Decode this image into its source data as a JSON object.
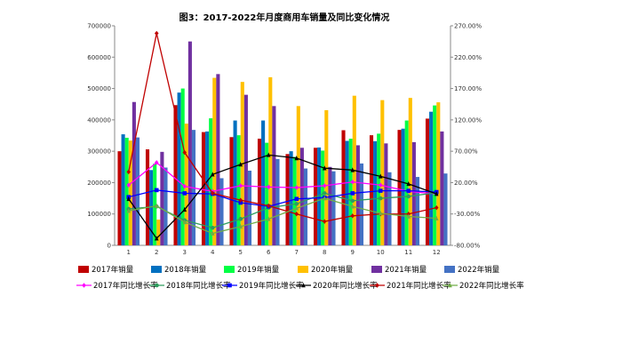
{
  "chart_data": {
    "type": "bar+line",
    "title": "图3：2017-2022年月度商用车销量及同比变化情况",
    "xlabel": "",
    "ylabel": "",
    "categories": [
      "1",
      "2",
      "3",
      "4",
      "5",
      "6",
      "7",
      "8",
      "9",
      "10",
      "11",
      "12"
    ],
    "y_left": {
      "lim": [
        0,
        700000
      ],
      "ticks": [
        "0",
        "100000",
        "200000",
        "300000",
        "400000",
        "500000",
        "600000",
        "700000"
      ]
    },
    "y_right": {
      "lim": [
        -80,
        270
      ],
      "ticks": [
        "-80.00%",
        "-30.00%",
        "20.00%",
        "70.00%",
        "120.00%",
        "170.00%",
        "220.00%",
        "270.00%"
      ]
    },
    "grid": false,
    "legend_position": "bottom",
    "bar_series": [
      {
        "name": "2017年销量",
        "color": "#C00000",
        "values": [
          300000,
          306000,
          447000,
          361000,
          345000,
          340000,
          291000,
          311000,
          367000,
          351000,
          368000,
          404000
        ]
      },
      {
        "name": "2018年销量",
        "color": "#0070C0",
        "values": [
          354000,
          240000,
          487000,
          363000,
          398000,
          398000,
          300000,
          312000,
          333000,
          332000,
          372000,
          426000
        ]
      },
      {
        "name": "2019年销量",
        "color": "#00FF44",
        "values": [
          343000,
          260000,
          500000,
          405000,
          351000,
          327000,
          282000,
          302000,
          340000,
          356000,
          398000,
          446000
        ]
      },
      {
        "name": "2020年销量",
        "color": "#FFC000",
        "values": [
          334000,
          82000,
          388000,
          534000,
          521000,
          536000,
          444000,
          431000,
          477000,
          463000,
          470000,
          456000
        ]
      },
      {
        "name": "2021年销量",
        "color": "#7030A0",
        "values": [
          457000,
          298000,
          650000,
          546000,
          480000,
          444000,
          311000,
          250000,
          319000,
          325000,
          329000,
          363000
        ]
      },
      {
        "name": "2022年销量",
        "color": "#4472C4",
        "values": [
          344000,
          248000,
          368000,
          214000,
          238000,
          275000,
          245000,
          236000,
          261000,
          233000,
          218000,
          229000
        ]
      }
    ],
    "line_series": [
      {
        "name": "2017年同比增长率",
        "color": "#FF00FF",
        "marker": "diamond",
        "values": [
          16,
          52,
          14,
          6,
          15,
          13,
          12,
          15,
          21,
          16,
          6,
          2
        ]
      },
      {
        "name": "2018年同比增长率",
        "color": "#2E9E5E",
        "marker": "circle",
        "values": [
          -22,
          -18,
          -40,
          -52,
          -38,
          -20,
          -14,
          3,
          -9,
          -5,
          -2,
          4
        ]
      },
      {
        "name": "2019年同比增长率",
        "color": "#0000FF",
        "marker": "square",
        "values": [
          -3,
          8,
          3,
          2,
          -12,
          -18,
          -6,
          -4,
          3,
          7,
          7,
          5
        ]
      },
      {
        "name": "2020年同比增长率",
        "color": "#000000",
        "marker": "triangle",
        "values": [
          -6,
          -69,
          -23,
          33,
          49,
          64,
          59,
          43,
          40,
          30,
          18,
          2
        ]
      },
      {
        "name": "2021年同比增长率",
        "color": "#C00000",
        "marker": "diamond",
        "values": [
          37,
          258,
          68,
          3,
          -8,
          -17,
          -30,
          -42,
          -33,
          -30,
          -30,
          -20
        ]
      },
      {
        "name": "2022年同比增长率",
        "color": "#70AD47",
        "marker": "triangle",
        "values": [
          -25,
          -17,
          -43,
          -61,
          -50,
          -38,
          -21,
          -5,
          -18,
          -29,
          -34,
          -37
        ]
      }
    ]
  }
}
